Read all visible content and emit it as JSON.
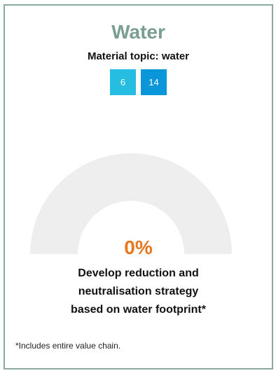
{
  "card": {
    "title": "Water",
    "subtitle": "Material topic: water",
    "sdg_badges": [
      {
        "label": "6",
        "color": "#26bde2"
      },
      {
        "label": "14",
        "color": "#0a97d9"
      }
    ],
    "gauge": {
      "progress_fraction": 0,
      "track_color": "#eeeeee",
      "fill_color": "#e87722"
    },
    "percentage": "0%",
    "goal_lines": [
      "Develop reduction and",
      "neutralisation strategy",
      "based on water footprint*"
    ],
    "footnote": "*Includes entire value chain."
  },
  "colors": {
    "border": "#8aa89f",
    "title": "#7a9e92",
    "accent": "#e87722"
  }
}
